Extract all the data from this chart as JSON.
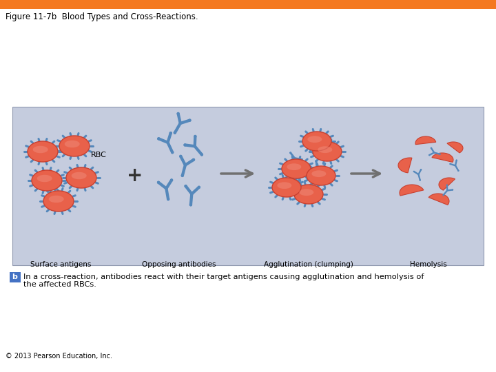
{
  "title": "Figure 11-7b  Blood Types and Cross-Reactions.",
  "title_bar_color": "#F47920",
  "background_color": "#ffffff",
  "panel_bg_color": "#C5CCDE",
  "rbc_color": "#E8614A",
  "rbc_edge_color": "#C84030",
  "rbc_highlight_color": "#F09080",
  "antibody_color": "#5588BB",
  "labels": [
    "Surface antigens",
    "Opposing antibodies",
    "Agglutination (clumping)",
    "Hemolysis"
  ],
  "rbc_label": "RBC",
  "caption_b_color": "#4472C4",
  "caption_line1": "In a cross-reaction, antibodies react with their target antigens causing agglutination and hemolysis of",
  "caption_line2": "the affected RBCs.",
  "copyright": "© 2013 Pearson Education, Inc."
}
